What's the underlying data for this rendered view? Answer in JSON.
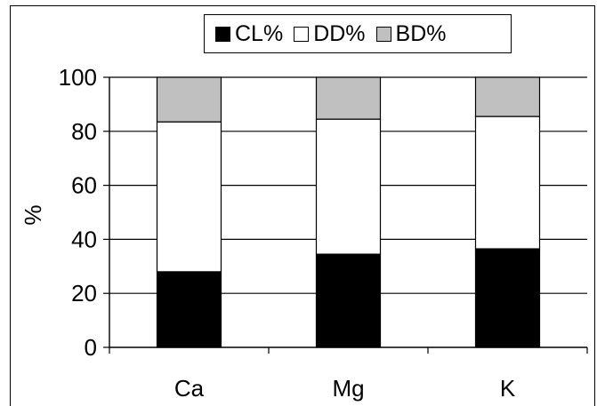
{
  "chart_data": {
    "type": "bar",
    "stacked": true,
    "categories": [
      "Ca",
      "Mg",
      "K"
    ],
    "series": [
      {
        "name": "CL%",
        "color": "#000000",
        "values": [
          28,
          34.5,
          36.5
        ]
      },
      {
        "name": "DD%",
        "color": "#ffffff",
        "values": [
          55.5,
          50,
          49
        ]
      },
      {
        "name": "BD%",
        "color": "#c0c0c0",
        "values": [
          16.5,
          15.5,
          14.5
        ]
      }
    ],
    "ylabel": "%",
    "xlabel": "",
    "ylim": [
      0,
      100
    ],
    "yticks": [
      "0",
      "20",
      "40",
      "60",
      "80",
      "100"
    ],
    "grid": true,
    "legend_position": "top"
  }
}
